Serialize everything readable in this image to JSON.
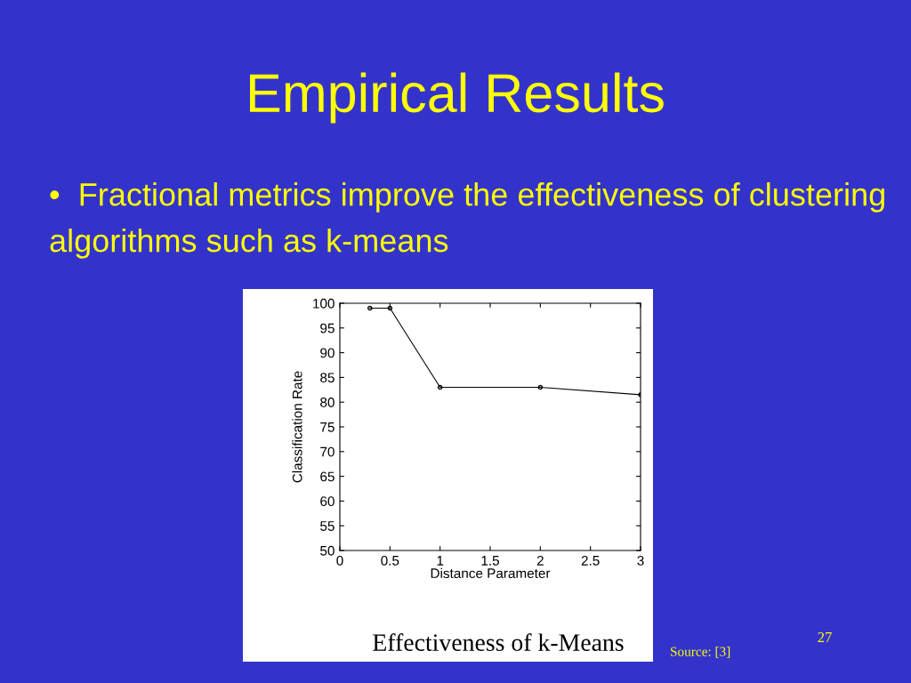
{
  "chart_data": {
    "type": "line",
    "title": "Empirical Results",
    "subtitle": "•  Fractional metrics improve the effectiveness of clustering algorithms such as k-means",
    "xlabel": "Distance Parameter",
    "ylabel": "Classification Rate",
    "x": [
      0.3,
      0.5,
      1,
      2,
      3
    ],
    "series": [
      {
        "color": "#000000",
        "values": [
          99,
          99,
          83,
          83,
          81.5
        ]
      }
    ],
    "xlim": [
      0,
      3
    ],
    "xticks": [
      0,
      0.5,
      1,
      1.5,
      2,
      2.5,
      3
    ],
    "ylim": [
      50,
      100
    ],
    "yticks": [
      50,
      55,
      60,
      65,
      70,
      75,
      80,
      85,
      90,
      95,
      100
    ],
    "grid": false,
    "legend": false,
    "marker": "circle",
    "line_style": "solid",
    "annotations": [
      "Effectiveness of k-Means",
      "Source: [3]",
      "27"
    ]
  }
}
